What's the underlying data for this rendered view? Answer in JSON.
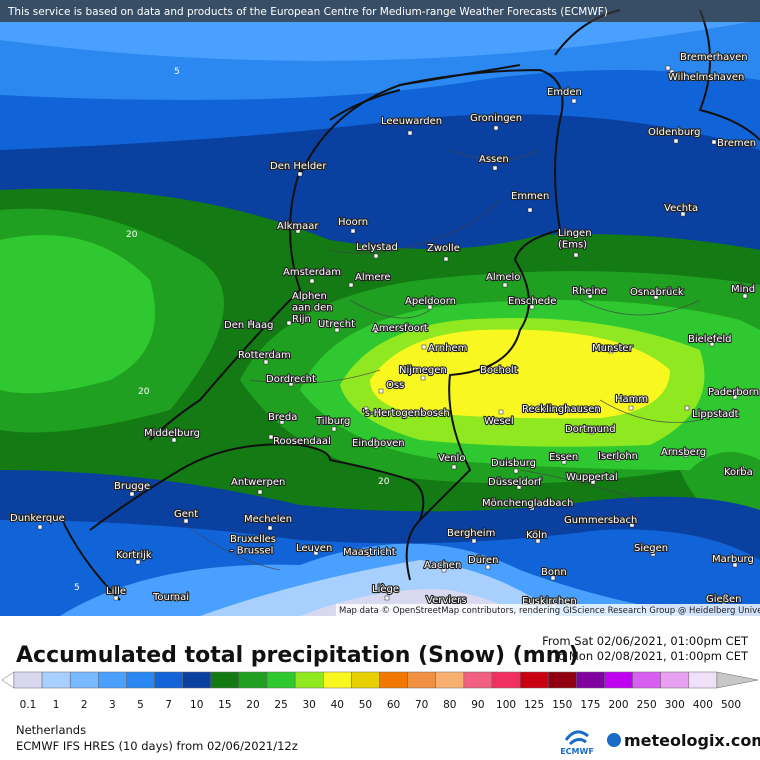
{
  "header": {
    "notice": "This service is based on data and products of the European Centre for Medium-range Weather Forecasts (ECMWF)"
  },
  "map": {
    "attribution": "Map data © OpenStreetMap contributors, rendering GIScience Research Group @ Heidelberg University",
    "contour_labels": [
      "5",
      "20",
      "20",
      "20",
      "5"
    ],
    "cities": [
      [
        "Bremerhaven"
      ],
      [
        "Wilhelmshaven"
      ],
      [
        "Emden"
      ],
      [
        "Leeuwarden"
      ],
      [
        "Groningen"
      ],
      [
        "Oldenburg"
      ],
      [
        "Bremen"
      ],
      [
        "Den Helder"
      ],
      [
        "Assen"
      ],
      [
        "Emmen"
      ],
      [
        "Vechta"
      ],
      [
        "Alkmaar"
      ],
      [
        "Hoorn"
      ],
      [
        "Lingen",
        "(Ems)"
      ],
      [
        "Lelystad"
      ],
      [
        "Zwolle"
      ],
      [
        "Amsterdam"
      ],
      [
        "Almere"
      ],
      [
        "Almelo"
      ],
      [
        "Rheine"
      ],
      [
        "Osnabrück"
      ],
      [
        "Mind"
      ],
      [
        "Alphen",
        "aan den",
        "Rijn"
      ],
      [
        "Apeldoorn"
      ],
      [
        "Enschede"
      ],
      [
        "Den Haag"
      ],
      [
        "Utrecht"
      ],
      [
        "Amersfoort"
      ],
      [
        "Bielefeld"
      ],
      [
        "Arnhem"
      ],
      [
        "Munster"
      ],
      [
        "Rotterdam"
      ],
      [
        "Nijmegen"
      ],
      [
        "Bocholt"
      ],
      [
        "Dordrecht"
      ],
      [
        "Oss"
      ],
      [
        "Paderborn"
      ],
      [
        "Hamm"
      ],
      [
        "Breda"
      ],
      [
        "Tilburg"
      ],
      [
        "'s-Hertogenbosch"
      ],
      [
        "Recklinghausen"
      ],
      [
        "Wesel"
      ],
      [
        "Lippstadt"
      ],
      [
        "Middelburg"
      ],
      [
        "Roosendaal"
      ],
      [
        "Eindhoven"
      ],
      [
        "Dortmund"
      ],
      [
        "Venlo"
      ],
      [
        "Duisburg"
      ],
      [
        "Essen"
      ],
      [
        "Iserlohn"
      ],
      [
        "Arnsberg"
      ],
      [
        "Korba"
      ],
      [
        "Wuppertal"
      ],
      [
        "Brugge"
      ],
      [
        "Antwerpen"
      ],
      [
        "Düsseldorf"
      ],
      [
        "Mönchengladbach"
      ],
      [
        "Dunkerque"
      ],
      [
        "Gent"
      ],
      [
        "Mechelen"
      ],
      [
        "Gummersbach"
      ],
      [
        "Bruxelles",
        "- Brussel"
      ],
      [
        "Leuven"
      ],
      [
        "Maastricht"
      ],
      [
        "Bergheim"
      ],
      [
        "Köln"
      ],
      [
        "Siegen"
      ],
      [
        "Kortrijk"
      ],
      [
        "Düren"
      ],
      [
        "Aachen"
      ],
      [
        "Marburg"
      ],
      [
        "Bonn"
      ],
      [
        "Lille"
      ],
      [
        "Liège"
      ],
      [
        "Tournai"
      ],
      [
        "Verviers"
      ],
      [
        "Euskirchen"
      ],
      [
        "Gießen"
      ]
    ]
  },
  "title": "Accumulated total precipitation (Snow) (mm)",
  "period": {
    "from": "From Sat 02/06/2021, 01:00pm CET",
    "to": "To Mon 02/08/2021, 01:00pm CET"
  },
  "legend": {
    "ticks": [
      "0.1",
      "1",
      "2",
      "3",
      "5",
      "7",
      "10",
      "15",
      "20",
      "25",
      "30",
      "40",
      "50",
      "60",
      "70",
      "80",
      "90",
      "100",
      "125",
      "150",
      "175",
      "200",
      "250",
      "300",
      "400",
      "500"
    ],
    "colors": [
      "#ffffff",
      "#d8d8f0",
      "#a8d0ff",
      "#78b8ff",
      "#4aa0ff",
      "#2a88f0",
      "#1064d8",
      "#0a40a0",
      "#147a14",
      "#20a020",
      "#30c830",
      "#90e820",
      "#f8f820",
      "#e8d000",
      "#f07800",
      "#f09040",
      "#f8b070",
      "#f06080",
      "#f03060",
      "#c80010",
      "#900010",
      "#8000a0",
      "#c000f0",
      "#d860f0",
      "#e8a0f0",
      "#f0e0f8",
      "#c8c8c8"
    ]
  },
  "footer": {
    "region": "Netherlands",
    "model": "ECMWF IFS HRES (10 days) from 02/06/2021/12z",
    "ecmwf": "ECMWF",
    "brand": "meteologix.com"
  }
}
